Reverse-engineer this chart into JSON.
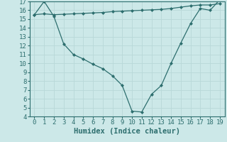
{
  "title": "",
  "xlabel": "Humidex (Indice chaleur)",
  "ylabel": "",
  "bg_color": "#cce8e8",
  "grid_color": "#b8d8d8",
  "line_color": "#2d6e6e",
  "x_min": 0,
  "x_max": 19,
  "y_min": 4,
  "y_max": 17,
  "line1_x": [
    0,
    1,
    2,
    3,
    4,
    5,
    6,
    7,
    8,
    9,
    10,
    11,
    12,
    13,
    14,
    15,
    16,
    17,
    18,
    19
  ],
  "line1_y": [
    15.5,
    17.0,
    15.3,
    12.2,
    11.0,
    10.5,
    9.9,
    9.4,
    8.6,
    7.5,
    4.6,
    4.5,
    6.5,
    7.5,
    10.0,
    12.3,
    14.5,
    16.2,
    16.0,
    17.2
  ],
  "line2_x": [
    0,
    1,
    2,
    3,
    4,
    5,
    6,
    7,
    8,
    9,
    10,
    11,
    12,
    13,
    14,
    15,
    16,
    17,
    18,
    19
  ],
  "line2_y": [
    15.5,
    15.6,
    15.5,
    15.55,
    15.6,
    15.65,
    15.7,
    15.75,
    15.85,
    15.9,
    15.95,
    16.0,
    16.05,
    16.1,
    16.2,
    16.35,
    16.5,
    16.6,
    16.6,
    16.75
  ],
  "marker": "D",
  "marker_size": 2.0,
  "line_width": 0.9,
  "tick_labelsize": 6.5,
  "xlabel_fontsize": 7.5
}
